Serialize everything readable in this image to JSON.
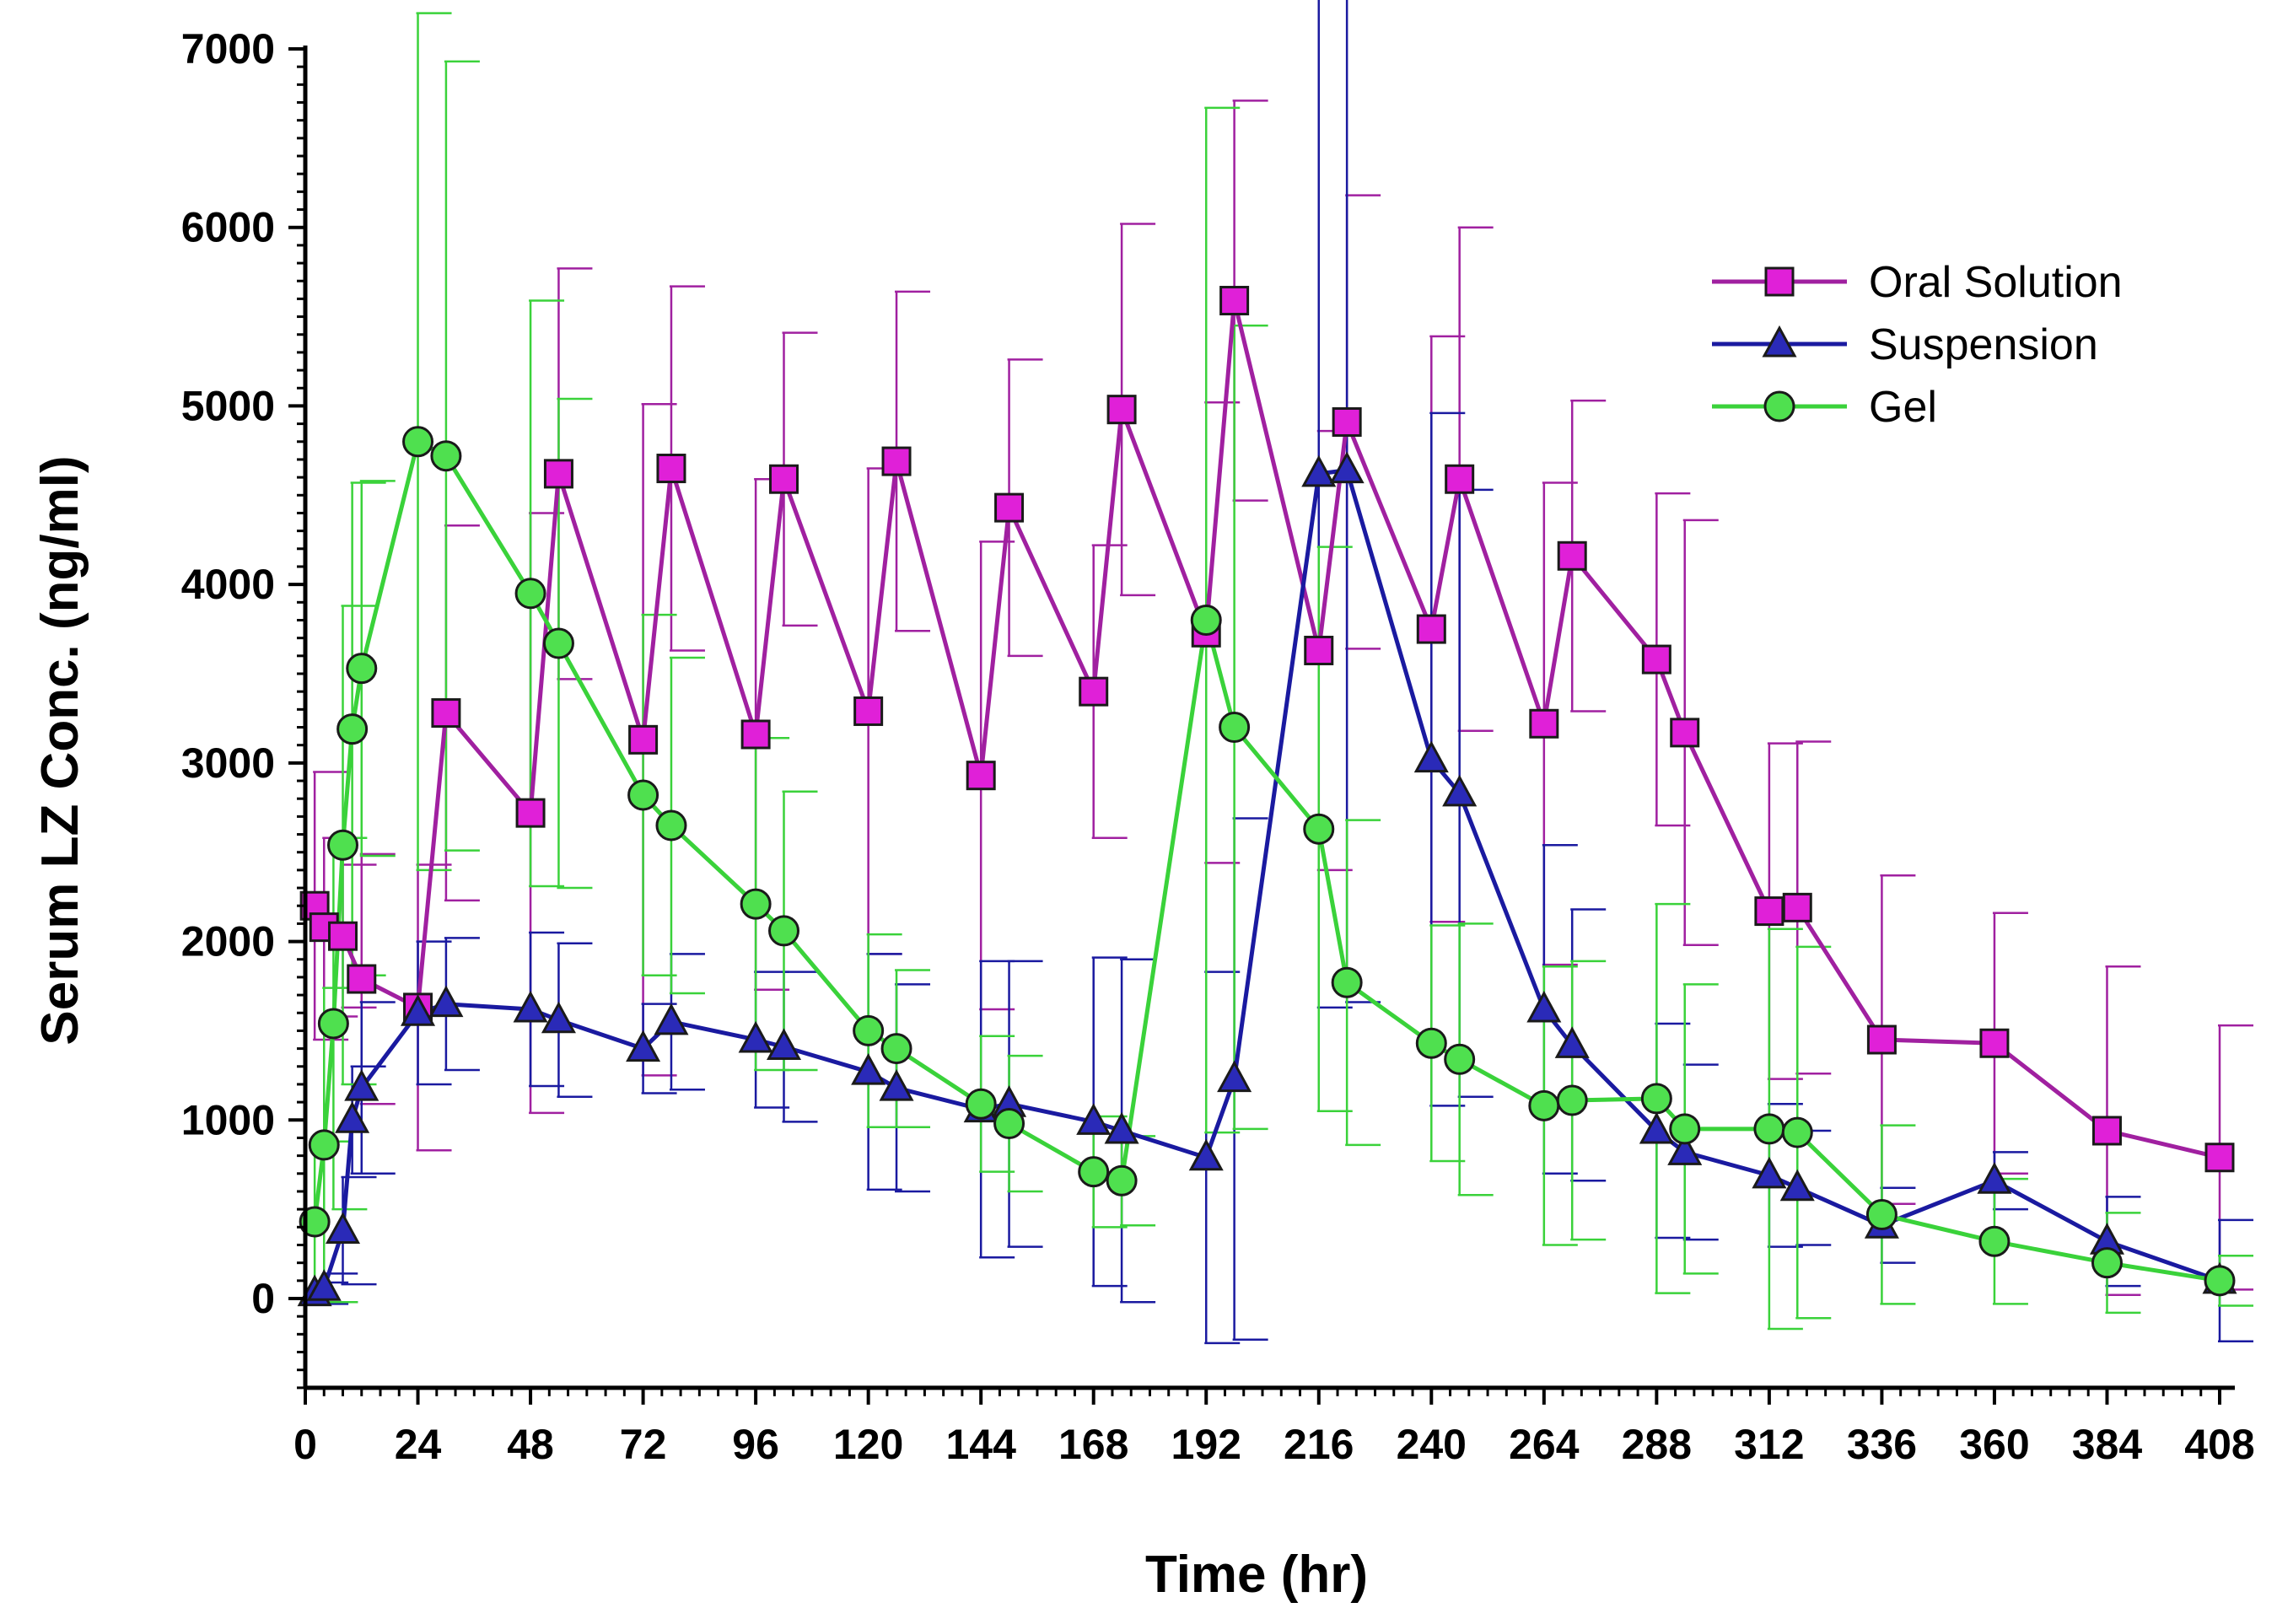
{
  "chart_data": {
    "type": "line",
    "xlabel": "Time (hr)",
    "ylabel": "Serum LZ Conc. (ng/ml)",
    "xlim": [
      0,
      408
    ],
    "ylim": [
      -500,
      7000
    ],
    "x_ticks": [
      0,
      24,
      48,
      72,
      96,
      120,
      144,
      168,
      192,
      216,
      240,
      264,
      288,
      312,
      336,
      360,
      384,
      408
    ],
    "y_ticks": [
      0,
      1000,
      2000,
      3000,
      4000,
      5000,
      6000,
      7000
    ],
    "legend_position": "top-right",
    "series": [
      {
        "name": "Oral Solution",
        "color": "#a020a0",
        "fill": "#e020d8",
        "marker": "square",
        "points": [
          {
            "x": 2,
            "y": 2200,
            "err": 750
          },
          {
            "x": 4,
            "y": 2080,
            "err": 500
          },
          {
            "x": 8,
            "y": 2030,
            "err": 400
          },
          {
            "x": 12,
            "y": 1790,
            "err": 700
          },
          {
            "x": 24,
            "y": 1630,
            "err": 800
          },
          {
            "x": 30,
            "y": 3280,
            "err": 1050
          },
          {
            "x": 48,
            "y": 2720,
            "err": 1680
          },
          {
            "x": 54,
            "y": 4620,
            "err": 1150
          },
          {
            "x": 72,
            "y": 3130,
            "err": 1880
          },
          {
            "x": 78,
            "y": 4650,
            "err": 1020
          },
          {
            "x": 96,
            "y": 3160,
            "err": 1430
          },
          {
            "x": 102,
            "y": 4590,
            "err": 820
          },
          {
            "x": 120,
            "y": 3290,
            "err": 1360
          },
          {
            "x": 126,
            "y": 4690,
            "err": 950
          },
          {
            "x": 144,
            "y": 2930,
            "err": 1310
          },
          {
            "x": 150,
            "y": 4430,
            "err": 830
          },
          {
            "x": 168,
            "y": 3400,
            "err": 820
          },
          {
            "x": 174,
            "y": 4980,
            "err": 1040
          },
          {
            "x": 192,
            "y": 3730,
            "err": 1290
          },
          {
            "x": 198,
            "y": 5590,
            "err": 1120
          },
          {
            "x": 216,
            "y": 3630,
            "err": 1230
          },
          {
            "x": 222,
            "y": 4910,
            "err": 1270
          },
          {
            "x": 240,
            "y": 3750,
            "err": 1640
          },
          {
            "x": 246,
            "y": 4590,
            "err": 1410
          },
          {
            "x": 264,
            "y": 3220,
            "err": 1350
          },
          {
            "x": 270,
            "y": 4160,
            "err": 870
          },
          {
            "x": 288,
            "y": 3580,
            "err": 930
          },
          {
            "x": 294,
            "y": 3170,
            "err": 1190
          },
          {
            "x": 312,
            "y": 2170,
            "err": 940
          },
          {
            "x": 318,
            "y": 2190,
            "err": 930
          },
          {
            "x": 336,
            "y": 1450,
            "err": 920
          },
          {
            "x": 360,
            "y": 1430,
            "err": 730
          },
          {
            "x": 384,
            "y": 940,
            "err": 920
          },
          {
            "x": 408,
            "y": 790,
            "err": 740
          }
        ]
      },
      {
        "name": "Suspension",
        "color": "#1a1aa0",
        "fill": "#2a2ab8",
        "marker": "triangle",
        "points": [
          {
            "x": 2,
            "y": 30,
            "err": 60
          },
          {
            "x": 4,
            "y": 60,
            "err": 80
          },
          {
            "x": 8,
            "y": 380,
            "err": 300
          },
          {
            "x": 10,
            "y": 1000,
            "err": 300
          },
          {
            "x": 12,
            "y": 1180,
            "err": 480
          },
          {
            "x": 24,
            "y": 1600,
            "err": 400
          },
          {
            "x": 30,
            "y": 1650,
            "err": 370
          },
          {
            "x": 48,
            "y": 1620,
            "err": 430
          },
          {
            "x": 54,
            "y": 1560,
            "err": 430
          },
          {
            "x": 72,
            "y": 1400,
            "err": 250
          },
          {
            "x": 78,
            "y": 1550,
            "err": 380
          },
          {
            "x": 96,
            "y": 1450,
            "err": 380
          },
          {
            "x": 102,
            "y": 1410,
            "err": 420
          },
          {
            "x": 120,
            "y": 1270,
            "err": 660
          },
          {
            "x": 126,
            "y": 1180,
            "err": 580
          },
          {
            "x": 144,
            "y": 1060,
            "err": 830
          },
          {
            "x": 150,
            "y": 1090,
            "err": 800
          },
          {
            "x": 168,
            "y": 990,
            "err": 920
          },
          {
            "x": 174,
            "y": 940,
            "err": 960
          },
          {
            "x": 192,
            "y": 790,
            "err": 1040
          },
          {
            "x": 198,
            "y": 1230,
            "err": 1460
          },
          {
            "x": 216,
            "y": 4620,
            "err": 2990
          },
          {
            "x": 222,
            "y": 4640,
            "err": 2980
          },
          {
            "x": 240,
            "y": 3020,
            "err": 1940
          },
          {
            "x": 246,
            "y": 2830,
            "err": 1700
          },
          {
            "x": 264,
            "y": 1620,
            "err": 920
          },
          {
            "x": 270,
            "y": 1420,
            "err": 760
          },
          {
            "x": 288,
            "y": 940,
            "err": 600
          },
          {
            "x": 294,
            "y": 820,
            "err": 490
          },
          {
            "x": 312,
            "y": 690,
            "err": 400
          },
          {
            "x": 318,
            "y": 620,
            "err": 320
          },
          {
            "x": 336,
            "y": 410,
            "err": 210
          },
          {
            "x": 360,
            "y": 660,
            "err": 160
          },
          {
            "x": 384,
            "y": 320,
            "err": 250
          },
          {
            "x": 408,
            "y": 100,
            "err": 340
          }
        ]
      },
      {
        "name": "Gel",
        "color": "#3ad23a",
        "fill": "#4fe04f",
        "marker": "circle",
        "points": [
          {
            "x": 2,
            "y": 430,
            "err": 450
          },
          {
            "x": 4,
            "y": 860,
            "err": 880
          },
          {
            "x": 6,
            "y": 1540,
            "err": 1040
          },
          {
            "x": 8,
            "y": 2540,
            "err": 1340
          },
          {
            "x": 10,
            "y": 3190,
            "err": 1380
          },
          {
            "x": 12,
            "y": 3530,
            "err": 1050
          },
          {
            "x": 24,
            "y": 4800,
            "err": 2400
          },
          {
            "x": 30,
            "y": 4720,
            "err": 2210
          },
          {
            "x": 48,
            "y": 3950,
            "err": 1640
          },
          {
            "x": 54,
            "y": 3670,
            "err": 1370
          },
          {
            "x": 72,
            "y": 2820,
            "err": 1010
          },
          {
            "x": 78,
            "y": 2650,
            "err": 940
          },
          {
            "x": 96,
            "y": 2210,
            "err": 930
          },
          {
            "x": 102,
            "y": 2060,
            "err": 780
          },
          {
            "x": 120,
            "y": 1500,
            "err": 540
          },
          {
            "x": 126,
            "y": 1400,
            "err": 440
          },
          {
            "x": 144,
            "y": 1090,
            "err": 380
          },
          {
            "x": 150,
            "y": 980,
            "err": 380
          },
          {
            "x": 168,
            "y": 710,
            "err": 310
          },
          {
            "x": 174,
            "y": 660,
            "err": 250
          },
          {
            "x": 192,
            "y": 3800,
            "err": 2870
          },
          {
            "x": 198,
            "y": 3200,
            "err": 2250
          },
          {
            "x": 216,
            "y": 2630,
            "err": 1580
          },
          {
            "x": 222,
            "y": 1770,
            "err": 910
          },
          {
            "x": 240,
            "y": 1430,
            "err": 660
          },
          {
            "x": 246,
            "y": 1340,
            "err": 760
          },
          {
            "x": 264,
            "y": 1080,
            "err": 780
          },
          {
            "x": 270,
            "y": 1110,
            "err": 780
          },
          {
            "x": 288,
            "y": 1120,
            "err": 1090
          },
          {
            "x": 294,
            "y": 950,
            "err": 810
          },
          {
            "x": 312,
            "y": 950,
            "err": 1120
          },
          {
            "x": 318,
            "y": 930,
            "err": 1040
          },
          {
            "x": 336,
            "y": 470,
            "err": 500
          },
          {
            "x": 360,
            "y": 320,
            "err": 350
          },
          {
            "x": 384,
            "y": 200,
            "err": 280
          },
          {
            "x": 408,
            "y": 100,
            "err": 140
          }
        ]
      }
    ]
  }
}
